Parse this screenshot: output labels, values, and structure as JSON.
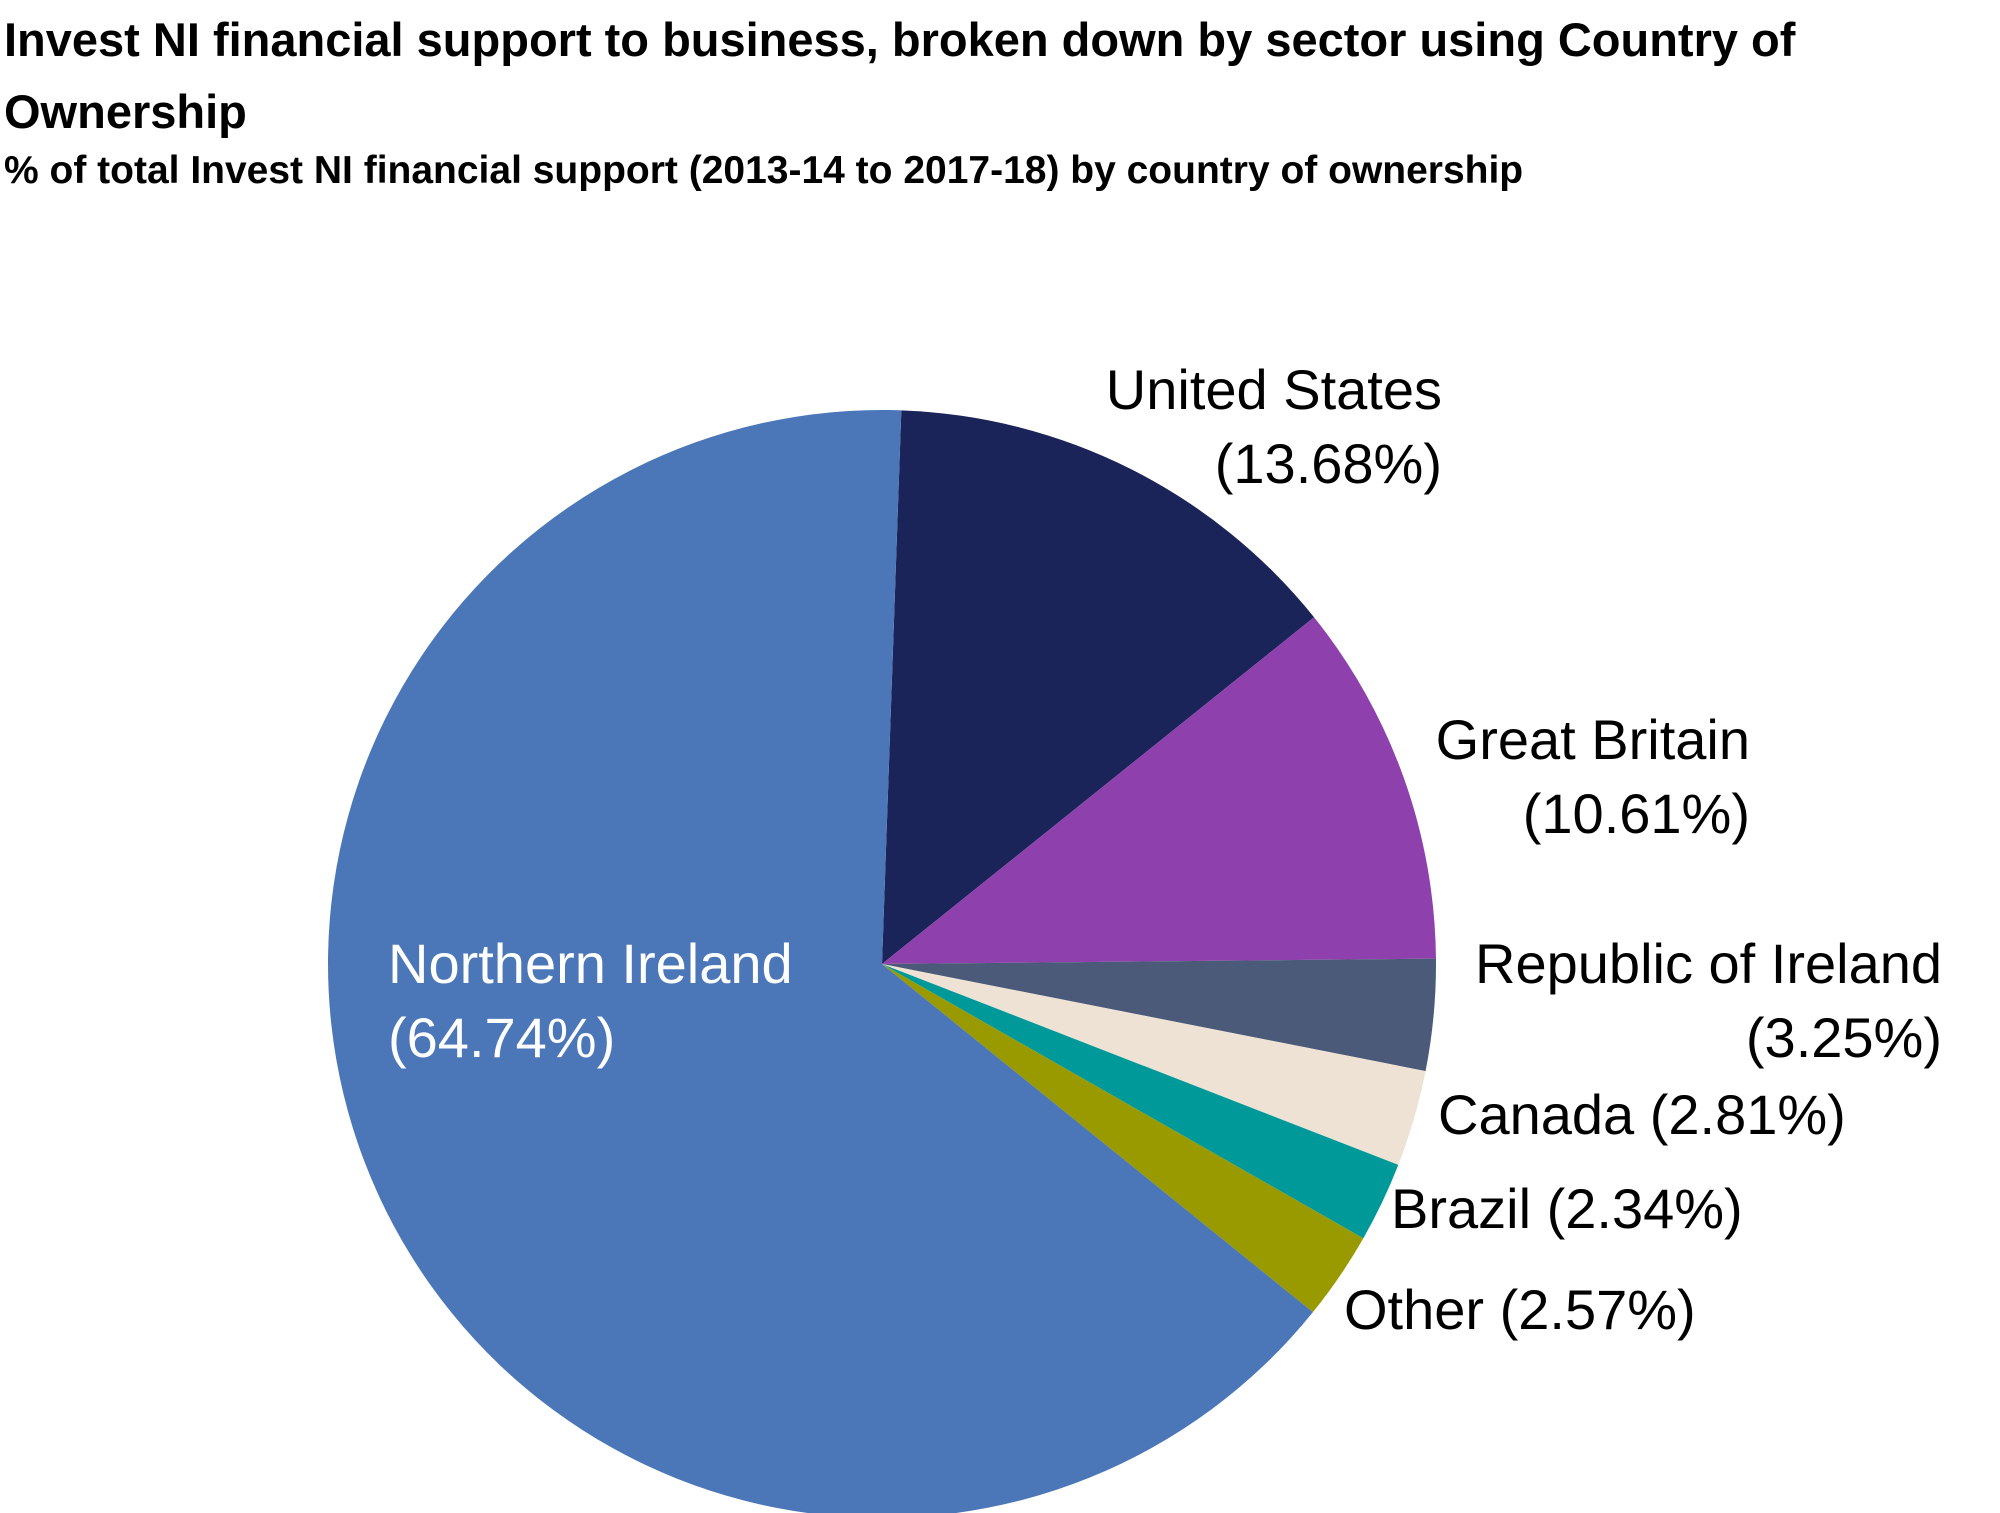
{
  "chart_data": {
    "type": "pie",
    "title": "Invest NI financial support to business, broken down by sector using Country of Ownership",
    "subtitle": "% of total Invest NI financial support (2013-14 to 2017-18) by country of ownership",
    "categories": [
      "United States",
      "Great Britain",
      "Republic of Ireland",
      "Canada",
      "Brazil",
      "Other",
      "Northern Ireland"
    ],
    "values": [
      13.68,
      10.61,
      3.25,
      2.81,
      2.34,
      2.57,
      64.74
    ],
    "value_labels": [
      "(13.68%)",
      "(10.61%)",
      "(3.25%)",
      "(2.81%)",
      "(2.34%)",
      "(2.57%)",
      "(64.74%)"
    ],
    "colors": [
      "#1b2459",
      "#8e41ac",
      "#4a5a78",
      "#ede2d3",
      "#00999a",
      "#999a00",
      "#4b77b8"
    ]
  }
}
